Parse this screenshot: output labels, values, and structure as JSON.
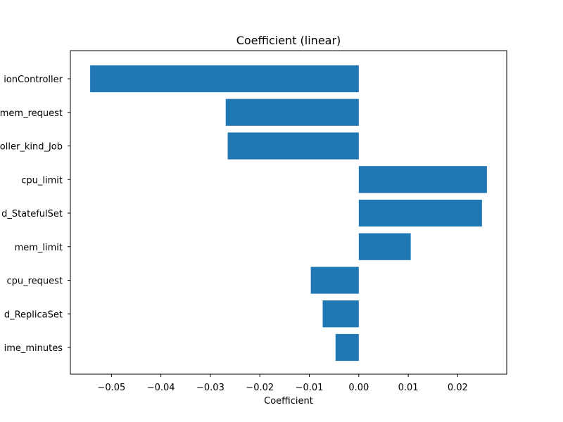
{
  "chart_data": {
    "type": "bar",
    "orientation": "horizontal",
    "title": "Coefficient (linear)",
    "xlabel": "Coefficient",
    "ylabel": "",
    "categories": [
      "ionController",
      "mem_request",
      "oller_kind_Job",
      "cpu_limit",
      "d_StatefulSet",
      "mem_limit",
      "cpu_request",
      "d_ReplicaSet",
      "ime_minutes"
    ],
    "values": [
      -0.0543,
      -0.0269,
      -0.0265,
      0.0259,
      0.0249,
      0.0105,
      -0.0097,
      -0.0073,
      -0.0047
    ],
    "xlim": [
      -0.0583,
      0.0299
    ],
    "xticks": [
      -0.05,
      -0.04,
      -0.03,
      -0.02,
      -0.01,
      0.0,
      0.01,
      0.02
    ],
    "xtick_labels": [
      "−0.05",
      "−0.04",
      "−0.03",
      "−0.02",
      "−0.01",
      "0.00",
      "0.01",
      "0.02"
    ],
    "grid": false,
    "bar_color": "#1f77b4"
  }
}
